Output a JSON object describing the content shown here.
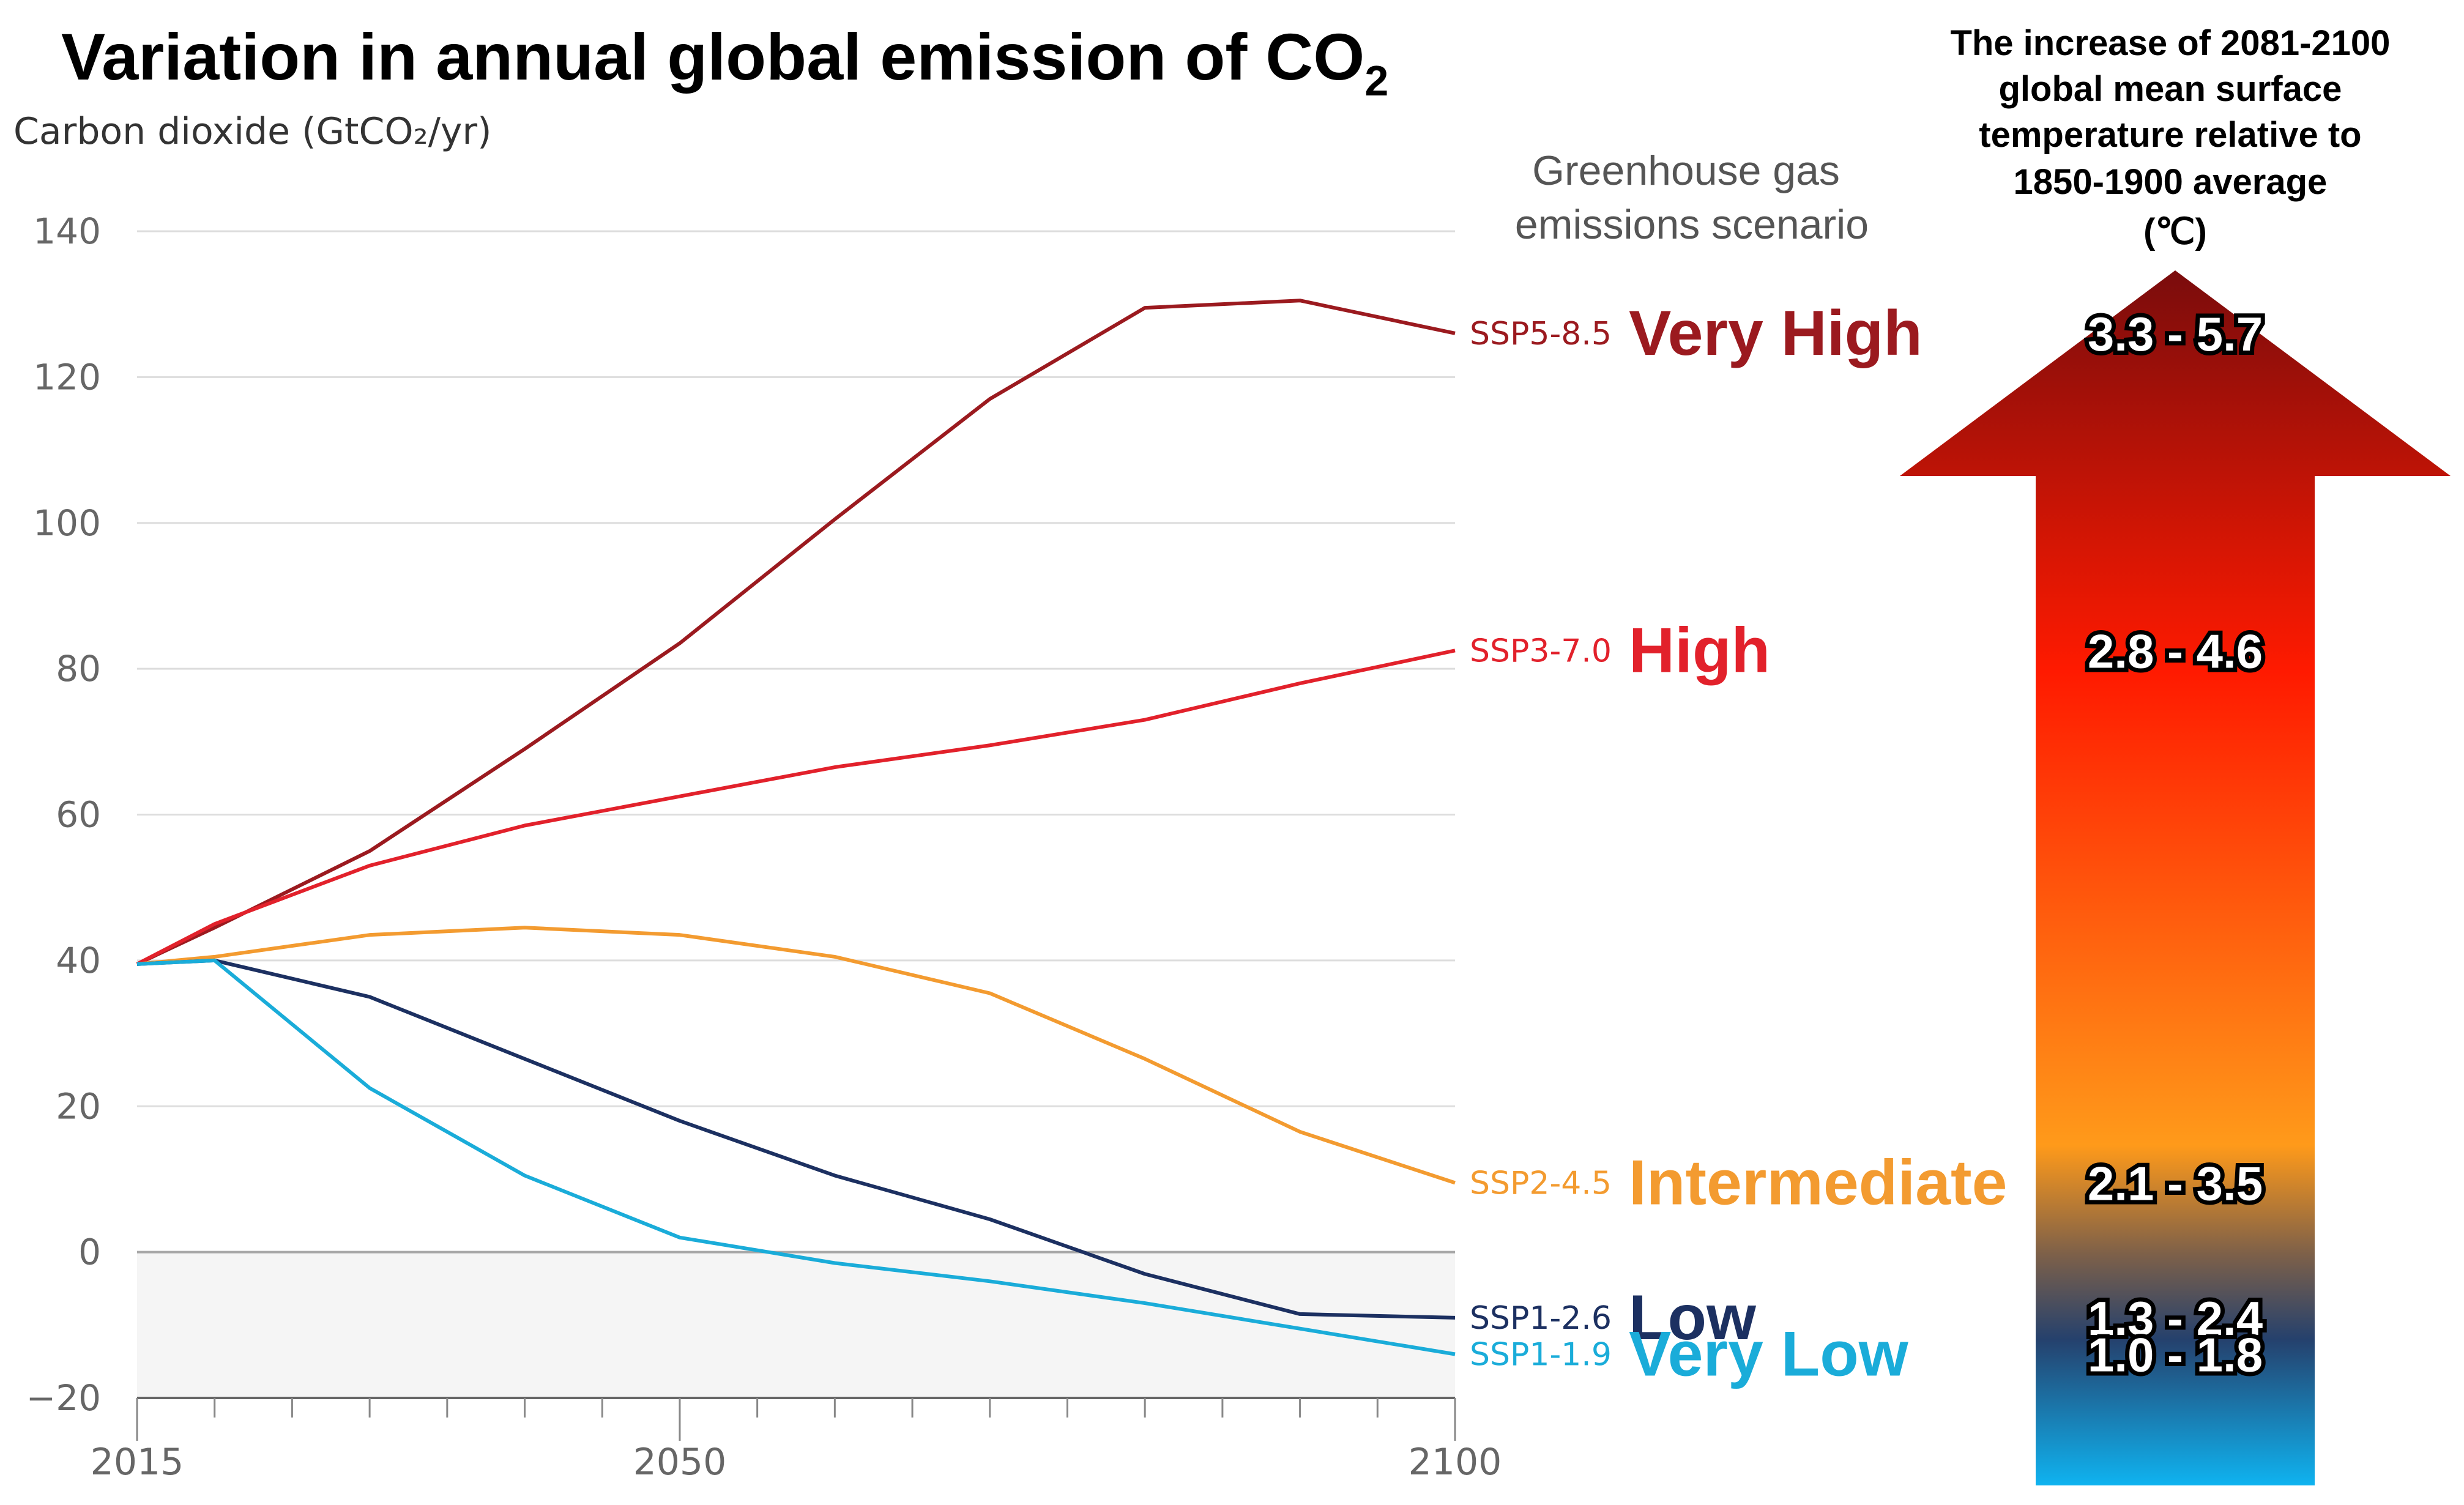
{
  "chart_data": {
    "type": "line",
    "title": "Variation in annual global emission of CO",
    "title_subscript": "2",
    "ylabel": "Carbon dioxide (GtCO₂/yr)",
    "xlim": [
      2015,
      2100
    ],
    "ylim": [
      -20,
      140
    ],
    "x_ticks": [
      2015,
      2050,
      2100
    ],
    "y_ticks": [
      -20,
      0,
      20,
      40,
      60,
      80,
      100,
      120,
      140
    ],
    "x_tick_labels": [
      "2015",
      "2050",
      "2100"
    ],
    "y_tick_labels": [
      "−20",
      "0",
      "20",
      "40",
      "60",
      "80",
      "100",
      "120",
      "140"
    ],
    "grid": true,
    "scenario_header": [
      "Greenhouse gas",
      "emissions scenario"
    ],
    "temperature_header": [
      "The increase of 2081-2100",
      "global mean surface",
      "temperature relative to",
      "1850-1900 average",
      "(℃)"
    ],
    "series": [
      {
        "name": "SSP5-8.5",
        "level": "Very High",
        "temperature_range": "3.3 - 5.7",
        "color": "#9b1a1f",
        "x": [
          2015,
          2020,
          2030,
          2040,
          2050,
          2060,
          2070,
          2080,
          2090,
          2100
        ],
        "y": [
          39.5,
          44.5,
          55,
          69,
          83.5,
          100.5,
          117,
          129.5,
          130.5,
          126
        ]
      },
      {
        "name": "SSP3-7.0",
        "level": "High",
        "temperature_range": "2.8 - 4.6",
        "color": "#e2212b",
        "x": [
          2015,
          2020,
          2030,
          2040,
          2050,
          2060,
          2070,
          2080,
          2090,
          2100
        ],
        "y": [
          39.5,
          45,
          53,
          58.5,
          62.5,
          66.5,
          69.5,
          73,
          78,
          82.5
        ]
      },
      {
        "name": "SSP2-4.5",
        "level": "Intermediate",
        "temperature_range": "2.1 - 3.5",
        "color": "#f39b30",
        "x": [
          2015,
          2020,
          2030,
          2040,
          2050,
          2060,
          2070,
          2080,
          2090,
          2100
        ],
        "y": [
          39.5,
          40.5,
          43.5,
          44.5,
          43.5,
          40.5,
          35.5,
          26.5,
          16.5,
          9.5
        ]
      },
      {
        "name": "SSP1-2.6",
        "level": "Low",
        "temperature_range": "1.3 - 2.4",
        "color": "#1c3061",
        "x": [
          2015,
          2020,
          2030,
          2040,
          2050,
          2060,
          2070,
          2080,
          2090,
          2100
        ],
        "y": [
          39.5,
          40,
          35,
          26.5,
          18,
          10.5,
          4.5,
          -3,
          -8.5,
          -9
        ]
      },
      {
        "name": "SSP1-1.9",
        "level": "Very Low",
        "temperature_range": "1.0 - 1.8",
        "color": "#1aacd9",
        "x": [
          2015,
          2020,
          2030,
          2040,
          2050,
          2060,
          2070,
          2080,
          2090,
          2100
        ],
        "y": [
          39.5,
          40,
          22.5,
          10.5,
          2,
          -1.5,
          -4,
          -7,
          -10.5,
          -14
        ]
      }
    ],
    "gradient_colors": {
      "arrow_top": "#7a0c0c",
      "arrow_red": "#ff1a00",
      "arrow_orange": "#ff9a1a",
      "arrow_brown": "#7d6049",
      "arrow_navy": "#25416d",
      "arrow_bottom": "#0fb3f0"
    }
  }
}
